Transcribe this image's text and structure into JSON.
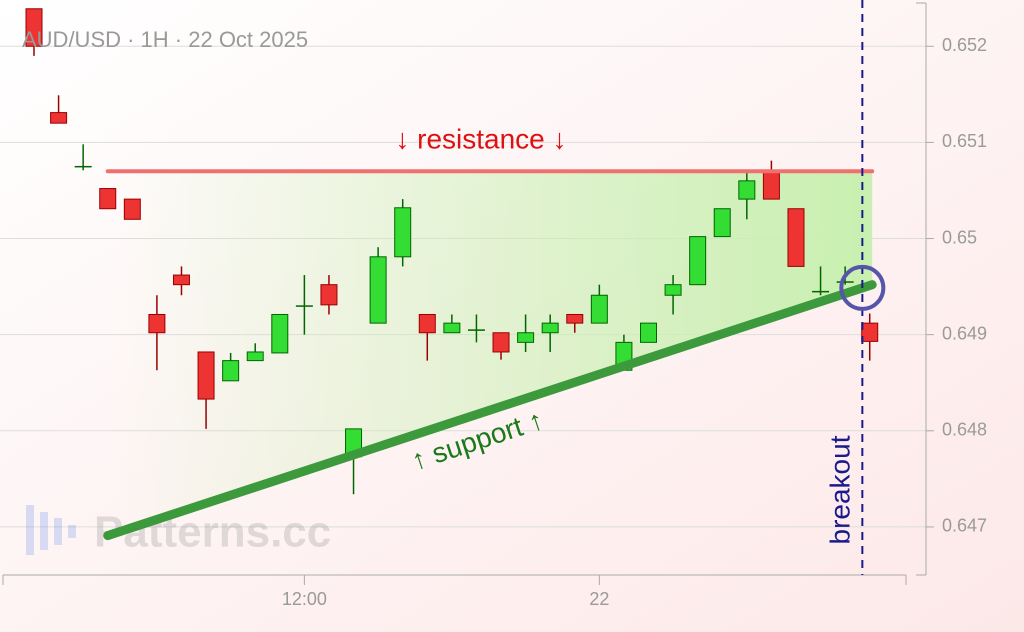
{
  "chart_data": {
    "type": "candlestick",
    "title": "AUD/USD · 1H · 22 Oct 2025",
    "watermark": "Patterns.cc",
    "categories": [
      null,
      null,
      null,
      null,
      null,
      null,
      null,
      null,
      null,
      null,
      null,
      "12:00",
      null,
      null,
      null,
      null,
      null,
      null,
      null,
      null,
      null,
      null,
      null,
      "22",
      null,
      null,
      null,
      null,
      null,
      null,
      null,
      null,
      null,
      null,
      null
    ],
    "open": [
      0.65239,
      0.65131,
      0.65075,
      0.65052,
      0.65041,
      0.64921,
      0.64962,
      0.64882,
      0.64852,
      0.64873,
      0.64881,
      0.6493,
      0.64952,
      0.64773,
      0.64912,
      0.64981,
      0.64921,
      0.64902,
      0.64905,
      0.64902,
      0.64892,
      0.64902,
      0.64921,
      0.64912,
      0.64863,
      0.64892,
      0.64941,
      0.64952,
      0.65002,
      0.65041,
      0.6507,
      0.65031,
      0.64945,
      0.64955,
      0.64912
    ],
    "high": [
      0.65239,
      0.65149,
      0.65098,
      0.65052,
      0.65041,
      0.64941,
      0.64971,
      0.64882,
      0.64881,
      0.64891,
      0.64921,
      0.64962,
      0.64962,
      0.64802,
      0.64991,
      0.65041,
      0.64921,
      0.64921,
      0.64921,
      0.64902,
      0.64921,
      0.64921,
      0.64921,
      0.64952,
      0.649,
      0.64912,
      0.64962,
      0.65002,
      0.65031,
      0.6507,
      0.65081,
      0.65031,
      0.64971,
      0.64971,
      0.64922
    ],
    "low": [
      0.6519,
      0.6512,
      0.65071,
      0.65031,
      0.6502,
      0.64863,
      0.64941,
      0.64802,
      0.64852,
      0.64873,
      0.64881,
      0.649,
      0.64921,
      0.64734,
      0.64912,
      0.64971,
      0.64873,
      0.64902,
      0.64892,
      0.64874,
      0.64882,
      0.64882,
      0.64902,
      0.64912,
      0.64863,
      0.64892,
      0.64921,
      0.64952,
      0.65002,
      0.6502,
      0.65041,
      0.64971,
      0.64941,
      0.64952,
      0.64873
    ],
    "close": [
      0.652,
      0.6512,
      0.65075,
      0.65031,
      0.6502,
      0.64902,
      0.64952,
      0.64833,
      0.64873,
      0.64882,
      0.64921,
      0.6493,
      0.64931,
      0.64802,
      0.64981,
      0.65032,
      0.64902,
      0.64912,
      0.64905,
      0.64882,
      0.64902,
      0.64912,
      0.64912,
      0.64941,
      0.64892,
      0.64912,
      0.64952,
      0.65002,
      0.65031,
      0.6506,
      0.65041,
      0.64971,
      0.64945,
      0.64955,
      0.64893
    ],
    "up_color": "#33dd33",
    "down_color": "#ee3333",
    "ylim": [
      0.6465,
      0.65245
    ],
    "yticks": [
      0.647,
      0.648,
      0.649,
      0.65,
      0.651,
      0.652
    ],
    "resistance": {
      "label": "↓ resistance ↓",
      "value": 0.6507,
      "x": [
        3,
        34.1
      ],
      "color": "#f07070"
    },
    "support": {
      "label": "↑ support ↑",
      "x": [
        3,
        34.1
      ],
      "y": [
        0.64691,
        0.64952
      ],
      "color": "#3c9a3c"
    },
    "breakout": {
      "label": "breakout",
      "x": 33.7,
      "color": "#1a1a8c"
    }
  }
}
